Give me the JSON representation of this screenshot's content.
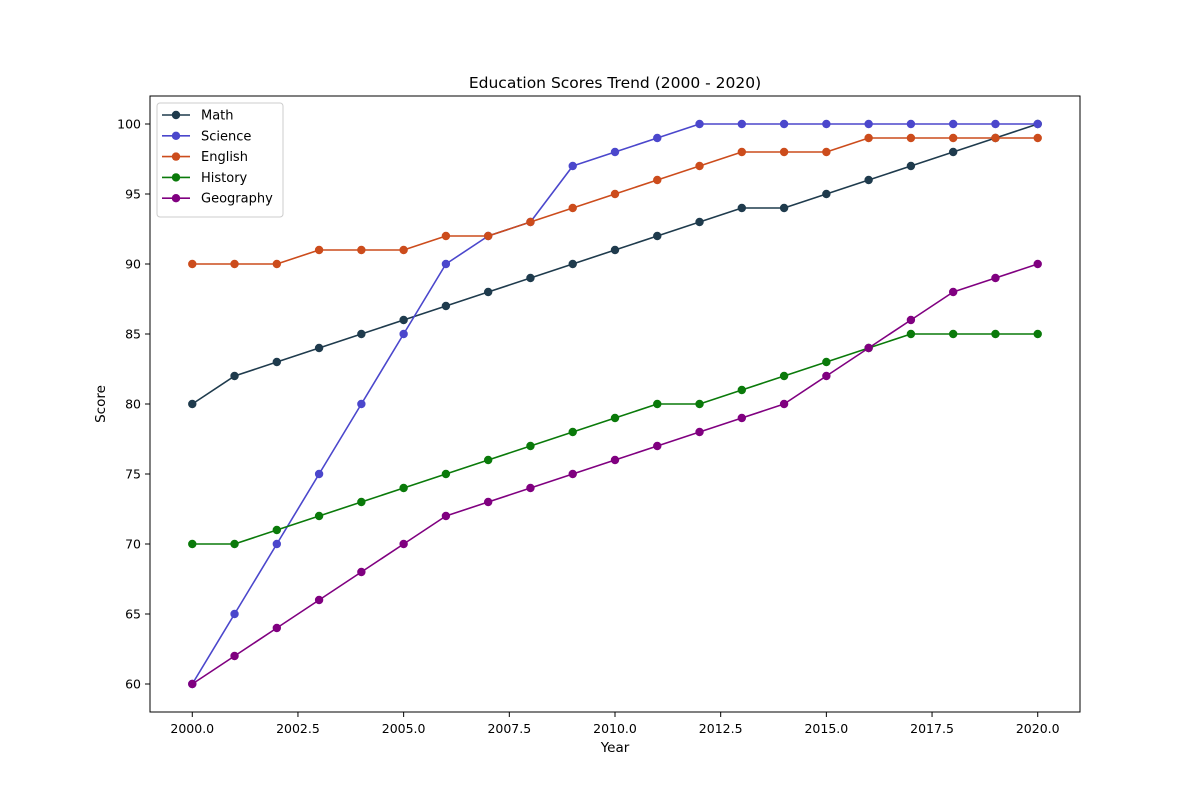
{
  "chart_data": {
    "type": "line",
    "title": "Education Scores Trend (2000 - 2020)",
    "xlabel": "Year",
    "ylabel": "Score",
    "xlim": [
      1999,
      2021
    ],
    "ylim": [
      58,
      102
    ],
    "xticks": [
      2000,
      2002.5,
      2005,
      2007.5,
      2010,
      2012.5,
      2015,
      2017.5,
      2020
    ],
    "xtick_labels": [
      "2000.0",
      "2002.5",
      "2005.0",
      "2007.5",
      "2010.0",
      "2012.5",
      "2015.0",
      "2017.5",
      "2020.0"
    ],
    "yticks": [
      60,
      65,
      70,
      75,
      80,
      85,
      90,
      95,
      100
    ],
    "ytick_labels": [
      "60",
      "65",
      "70",
      "75",
      "80",
      "85",
      "90",
      "95",
      "100"
    ],
    "grid": false,
    "legend_position": "top-left",
    "x": [
      2000,
      2001,
      2002,
      2003,
      2004,
      2005,
      2006,
      2007,
      2008,
      2009,
      2010,
      2011,
      2012,
      2013,
      2014,
      2015,
      2016,
      2017,
      2018,
      2019,
      2020
    ],
    "series": [
      {
        "name": "Math",
        "color": "#1f3b4d",
        "values": [
          80,
          82,
          83,
          84,
          85,
          86,
          87,
          88,
          89,
          90,
          91,
          92,
          93,
          94,
          94,
          95,
          96,
          97,
          98,
          99,
          100
        ]
      },
      {
        "name": "Science",
        "color": "#4b47cc",
        "values": [
          60,
          65,
          70,
          75,
          80,
          85,
          90,
          92,
          93,
          97,
          98,
          99,
          100,
          100,
          100,
          100,
          100,
          100,
          100,
          100,
          100
        ]
      },
      {
        "name": "English",
        "color": "#cc4c1c",
        "values": [
          90,
          90,
          90,
          91,
          91,
          91,
          92,
          92,
          93,
          94,
          95,
          96,
          97,
          98,
          98,
          98,
          99,
          99,
          99,
          99,
          99
        ]
      },
      {
        "name": "History",
        "color": "#0a7a0a",
        "values": [
          70,
          70,
          71,
          72,
          73,
          74,
          75,
          76,
          77,
          78,
          79,
          80,
          80,
          81,
          82,
          83,
          84,
          85,
          85,
          85,
          85
        ]
      },
      {
        "name": "Geography",
        "color": "#800080",
        "values": [
          60,
          62,
          64,
          66,
          68,
          70,
          72,
          73,
          74,
          75,
          76,
          77,
          78,
          79,
          80,
          82,
          84,
          86,
          88,
          89,
          90
        ]
      }
    ]
  }
}
